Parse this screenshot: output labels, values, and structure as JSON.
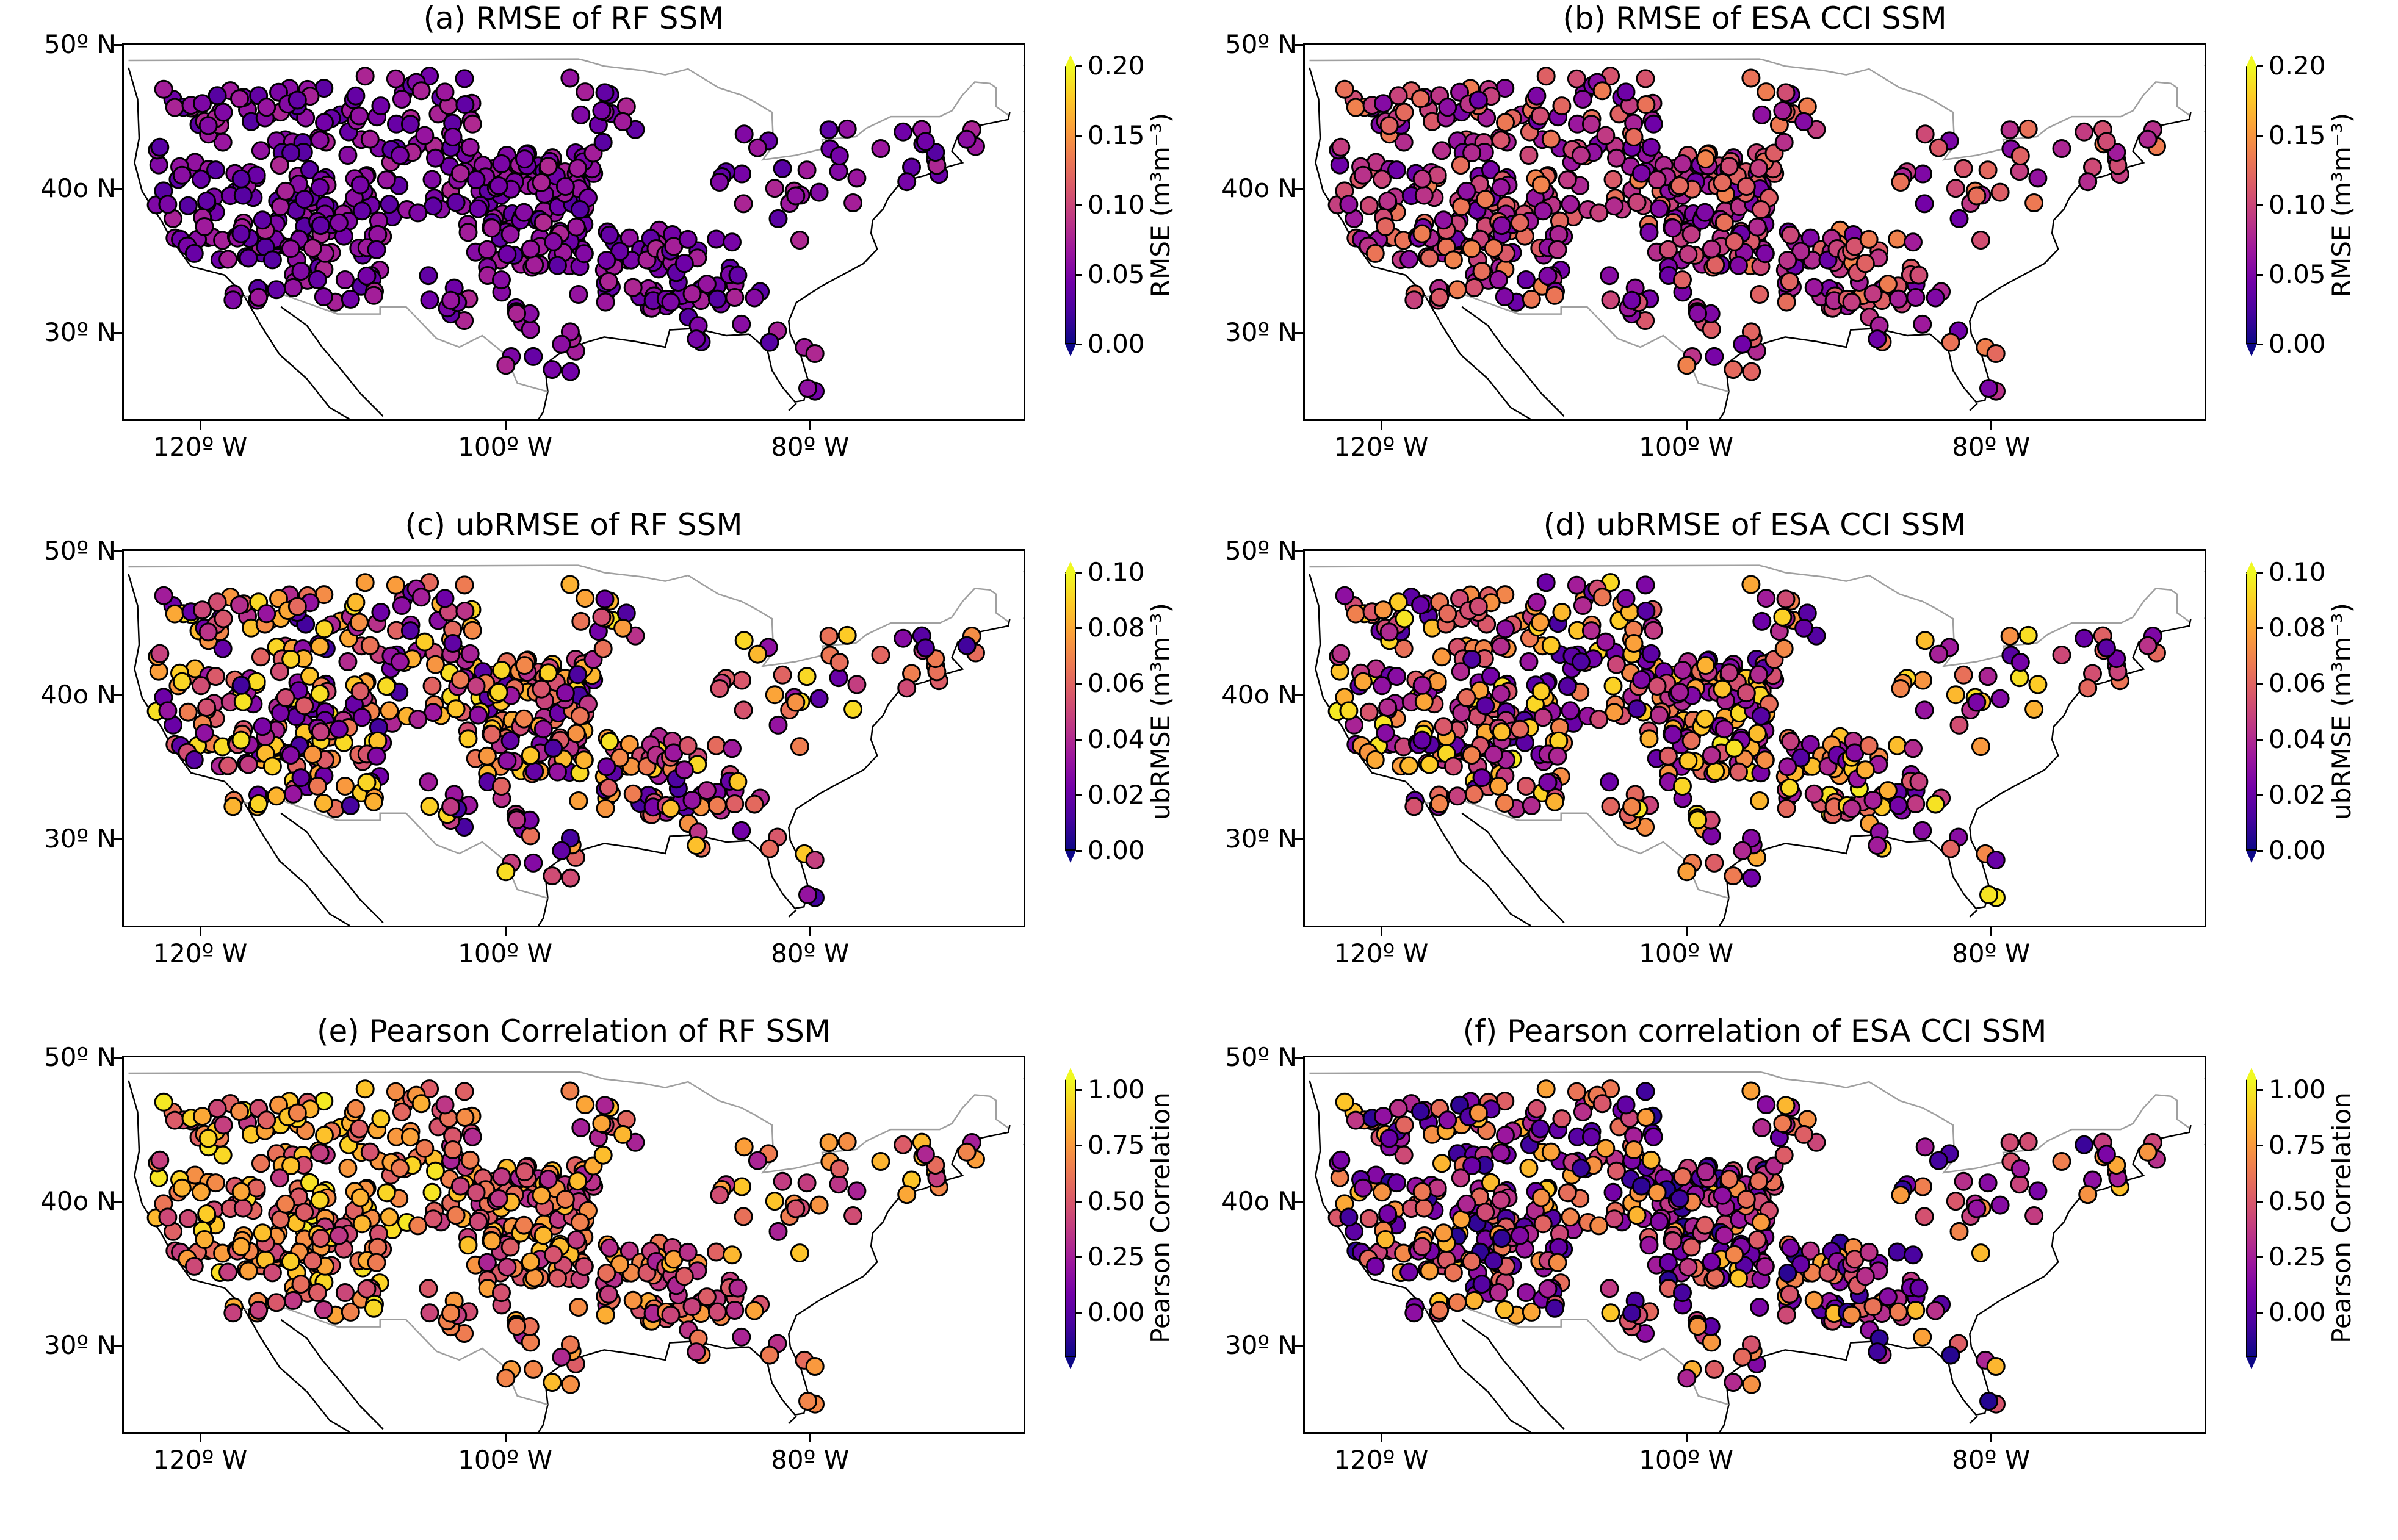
{
  "panels": [
    {
      "id": "a",
      "title": "(a) RMSE of RF SSM",
      "colorbar_label": "RMSE (m³m⁻³)",
      "colorbar_ticks": [
        "0.20",
        "0.15",
        "0.10",
        "0.05",
        "0.00"
      ],
      "colorbar_range": [
        0.0,
        0.2
      ],
      "metric": "rmse",
      "product": "rf"
    },
    {
      "id": "b",
      "title": "(b) RMSE of ESA CCI SSM",
      "colorbar_label": "RMSE (m³m⁻³)",
      "colorbar_ticks": [
        "0.20",
        "0.15",
        "0.10",
        "0.05",
        "0.00"
      ],
      "colorbar_range": [
        0.0,
        0.2
      ],
      "metric": "rmse",
      "product": "esa"
    },
    {
      "id": "c",
      "title": "(c) ubRMSE of RF SSM",
      "colorbar_label": "ubRMSE (m³m⁻³)",
      "colorbar_ticks": [
        "0.10",
        "0.08",
        "0.06",
        "0.04",
        "0.02",
        "0.00"
      ],
      "colorbar_range": [
        0.0,
        0.1
      ],
      "metric": "ubrmse",
      "product": "rf"
    },
    {
      "id": "d",
      "title": "(d) ubRMSE of ESA CCI SSM",
      "colorbar_label": "ubRMSE (m³m⁻³)",
      "colorbar_ticks": [
        "0.10",
        "0.08",
        "0.06",
        "0.04",
        "0.02",
        "0.00"
      ],
      "colorbar_range": [
        0.0,
        0.1
      ],
      "metric": "ubrmse",
      "product": "esa"
    },
    {
      "id": "e",
      "title": "(e) Pearson Correlation of RF SSM",
      "colorbar_label": "Pearson Correlation",
      "colorbar_ticks": [
        "1.00",
        "0.75",
        "0.50",
        "0.25",
        "0.00"
      ],
      "colorbar_range": [
        -0.2,
        1.05
      ],
      "metric": "r",
      "product": "rf"
    },
    {
      "id": "f",
      "title": "(f) Pearson correlation of ESA CCI SSM",
      "colorbar_label": "Pearson Correlation",
      "colorbar_ticks": [
        "1.00",
        "0.75",
        "0.50",
        "0.25",
        "0.00"
      ],
      "colorbar_range": [
        -0.2,
        1.05
      ],
      "metric": "r",
      "product": "esa"
    }
  ],
  "axes": {
    "lat_ticks": [
      "50º N",
      "40o N",
      "30º N"
    ],
    "lon_ticks": [
      "120º W",
      "100º W",
      "80º W"
    ],
    "lat_values": [
      50,
      40,
      30
    ],
    "lon_values": [
      -120,
      -100,
      -80
    ],
    "lon_range": [
      -125,
      -66
    ],
    "lat_range": [
      24,
      50
    ]
  },
  "colormap": "plasma",
  "colors": {
    "coast": "#000000",
    "border": "#a0a0a0",
    "marker_edge": "#000000"
  }
}
